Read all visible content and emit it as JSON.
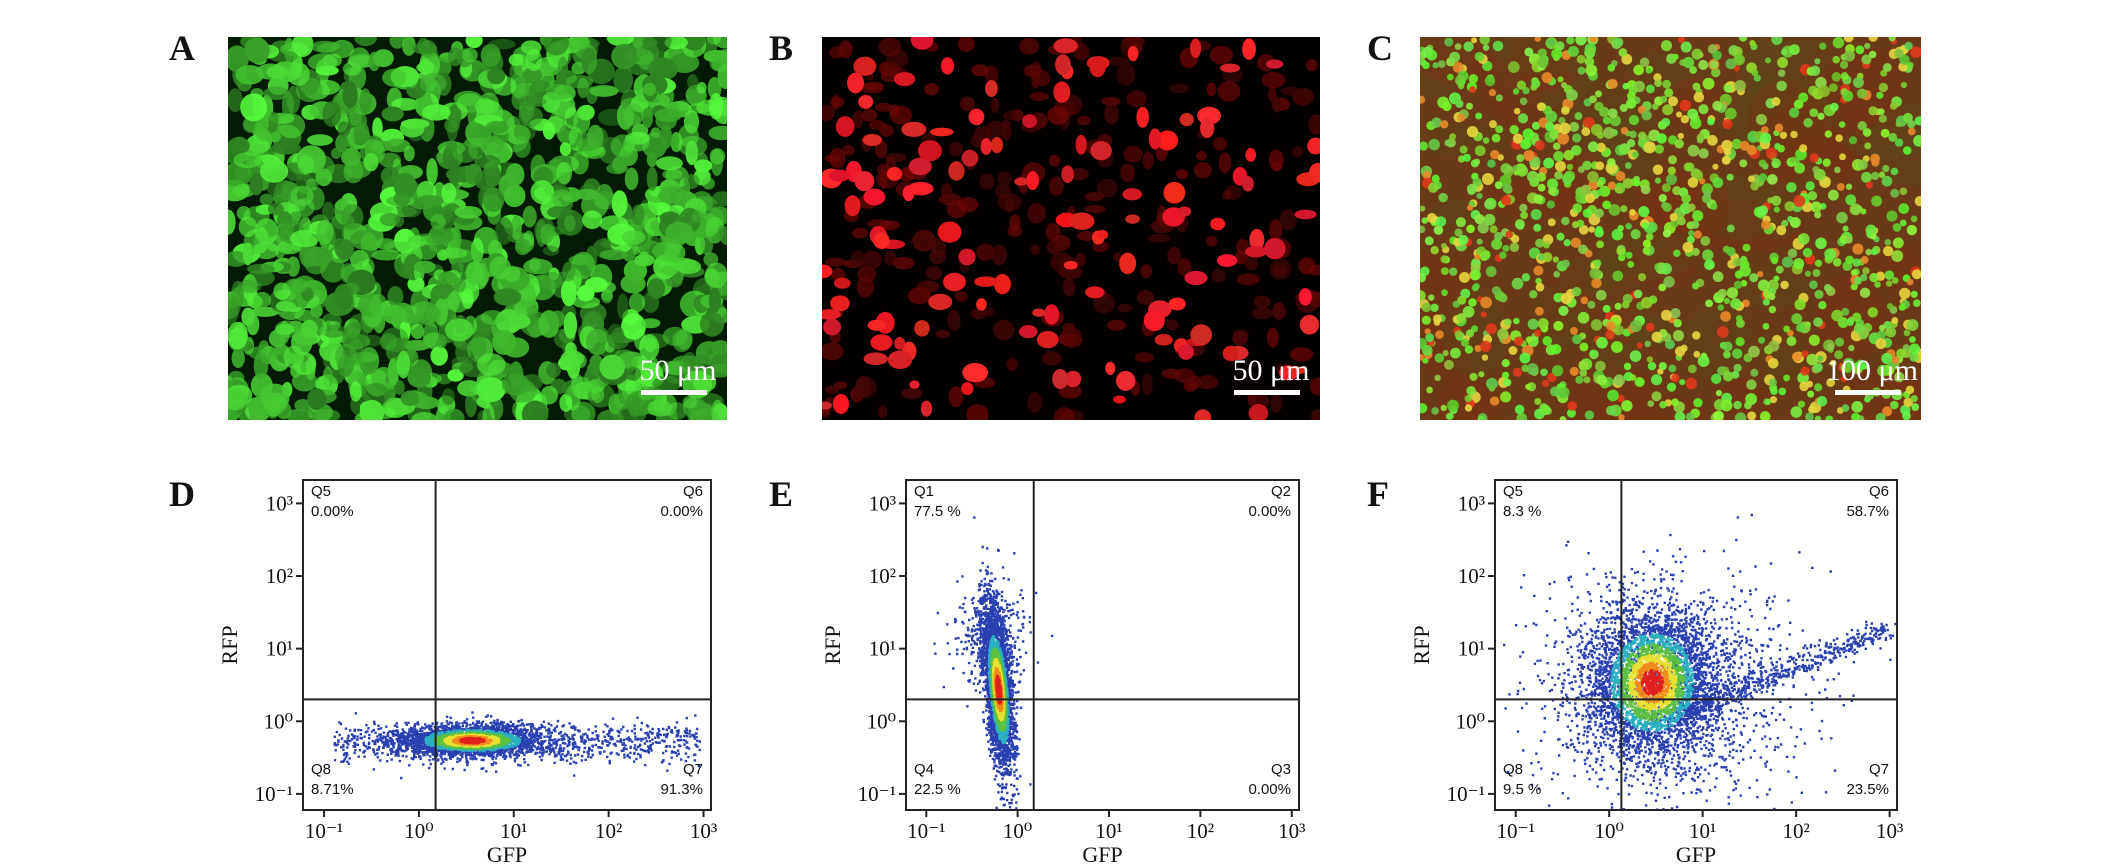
{
  "images": [
    {
      "panel_label": "A",
      "scale_bar": "50 μm"
    },
    {
      "panel_label": "B",
      "scale_bar": "50 μm"
    },
    {
      "panel_label": "C",
      "scale_bar": "100 μm"
    }
  ],
  "chart_data": [
    {
      "type": "scatter",
      "panel_label": "D",
      "xlabel": "GFP",
      "ylabel": "RFP",
      "log_x": true,
      "log_y": true,
      "xlim": [
        0.06,
        1200
      ],
      "ylim": [
        0.06,
        2100
      ],
      "xticks": [
        {
          "value": 0.1,
          "label": "10⁻¹"
        },
        {
          "value": 1,
          "label": "10⁰"
        },
        {
          "value": 10,
          "label": "10¹"
        },
        {
          "value": 100,
          "label": "10²"
        },
        {
          "value": 1000,
          "label": "10³"
        }
      ],
      "yticks": [
        {
          "value": 0.1,
          "label": "10⁻¹"
        },
        {
          "value": 1,
          "label": "10⁰"
        },
        {
          "value": 10,
          "label": "10¹"
        },
        {
          "value": 100,
          "label": "10²"
        },
        {
          "value": 1000,
          "label": "10³"
        }
      ],
      "gate": {
        "x": 1.5,
        "y": 2
      },
      "quadrants": [
        "Q5",
        "Q6",
        "Q8",
        "Q7"
      ],
      "values": [
        0,
        0,
        8.71,
        91.3
      ],
      "value_labels": [
        "0.00%",
        "0.00%",
        "8.71%",
        "91.3%"
      ]
    },
    {
      "type": "scatter",
      "panel_label": "E",
      "xlabel": "GFP",
      "ylabel": "RFP",
      "log_x": true,
      "log_y": true,
      "xlim": [
        0.06,
        1200
      ],
      "ylim": [
        0.06,
        2100
      ],
      "xticks": [
        {
          "value": 0.1,
          "label": "10⁻¹"
        },
        {
          "value": 1,
          "label": "10⁰"
        },
        {
          "value": 10,
          "label": "10¹"
        },
        {
          "value": 100,
          "label": "10²"
        },
        {
          "value": 1000,
          "label": "10³"
        }
      ],
      "yticks": [
        {
          "value": 0.1,
          "label": "10⁻¹"
        },
        {
          "value": 1,
          "label": "10⁰"
        },
        {
          "value": 10,
          "label": "10¹"
        },
        {
          "value": 100,
          "label": "10²"
        },
        {
          "value": 1000,
          "label": "10³"
        }
      ],
      "gate": {
        "x": 1.5,
        "y": 2
      },
      "quadrants": [
        "Q1",
        "Q2",
        "Q4",
        "Q3"
      ],
      "values": [
        77.5,
        0,
        22.5,
        0
      ],
      "value_labels": [
        "77.5 %",
        "0.00%",
        "22.5 %",
        "0.00%"
      ]
    },
    {
      "type": "scatter",
      "panel_label": "F",
      "xlabel": "GFP",
      "ylabel": "RFP",
      "log_x": true,
      "log_y": true,
      "xlim": [
        0.06,
        1200
      ],
      "ylim": [
        0.06,
        2100
      ],
      "xticks": [
        {
          "value": 0.1,
          "label": "10⁻¹"
        },
        {
          "value": 1,
          "label": "10⁰"
        },
        {
          "value": 10,
          "label": "10¹"
        },
        {
          "value": 100,
          "label": "10²"
        },
        {
          "value": 1000,
          "label": "10³"
        }
      ],
      "yticks": [
        {
          "value": 0.1,
          "label": "10⁻¹"
        },
        {
          "value": 1,
          "label": "10⁰"
        },
        {
          "value": 10,
          "label": "10¹"
        },
        {
          "value": 100,
          "label": "10²"
        },
        {
          "value": 1000,
          "label": "10³"
        }
      ],
      "gate": {
        "x": 1.35,
        "y": 2
      },
      "quadrants": [
        "Q5",
        "Q6",
        "Q8",
        "Q7"
      ],
      "values": [
        8.3,
        58.7,
        9.5,
        23.5
      ],
      "value_labels": [
        "8.3 %",
        "58.7%",
        "9.5 %",
        "23.5%"
      ]
    }
  ]
}
